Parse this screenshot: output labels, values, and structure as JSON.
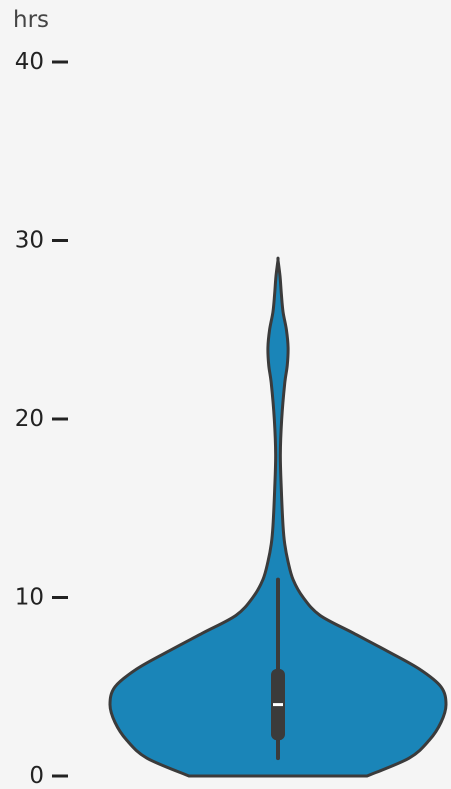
{
  "chart_data": {
    "type": "violin",
    "ylabel": "hrs",
    "ylim": [
      0,
      40
    ],
    "yticks": [
      0,
      10,
      20,
      30,
      40
    ],
    "yticks_labels": [
      "0",
      "10",
      "20",
      "30",
      "40"
    ],
    "grid": false,
    "legend": "none",
    "colors": {
      "fill": "#1a85b8",
      "stroke": "#3b3b3b",
      "background": "#f5f5f5",
      "median": "#ffffff"
    },
    "violin": {
      "density_profile": [
        [
          0,
          0.53
        ],
        [
          1,
          0.78
        ],
        [
          2,
          0.9
        ],
        [
          3,
          0.97
        ],
        [
          4,
          1.0
        ],
        [
          5,
          0.97
        ],
        [
          6,
          0.84
        ],
        [
          7,
          0.65
        ],
        [
          8,
          0.45
        ],
        [
          9,
          0.25
        ],
        [
          10,
          0.15
        ],
        [
          11,
          0.09
        ],
        [
          12,
          0.06
        ],
        [
          13,
          0.04
        ],
        [
          14,
          0.03
        ],
        [
          16,
          0.02
        ],
        [
          18,
          0.014
        ],
        [
          20,
          0.022
        ],
        [
          22,
          0.04
        ],
        [
          23,
          0.055
        ],
        [
          24,
          0.06
        ],
        [
          25,
          0.05
        ],
        [
          26,
          0.03
        ],
        [
          27,
          0.02
        ],
        [
          28,
          0.012
        ],
        [
          28.9,
          0.0
        ]
      ],
      "box": {
        "whisker_low": 1,
        "q1": 2,
        "median": 4,
        "q3": 6,
        "whisker_high": 11
      }
    }
  }
}
